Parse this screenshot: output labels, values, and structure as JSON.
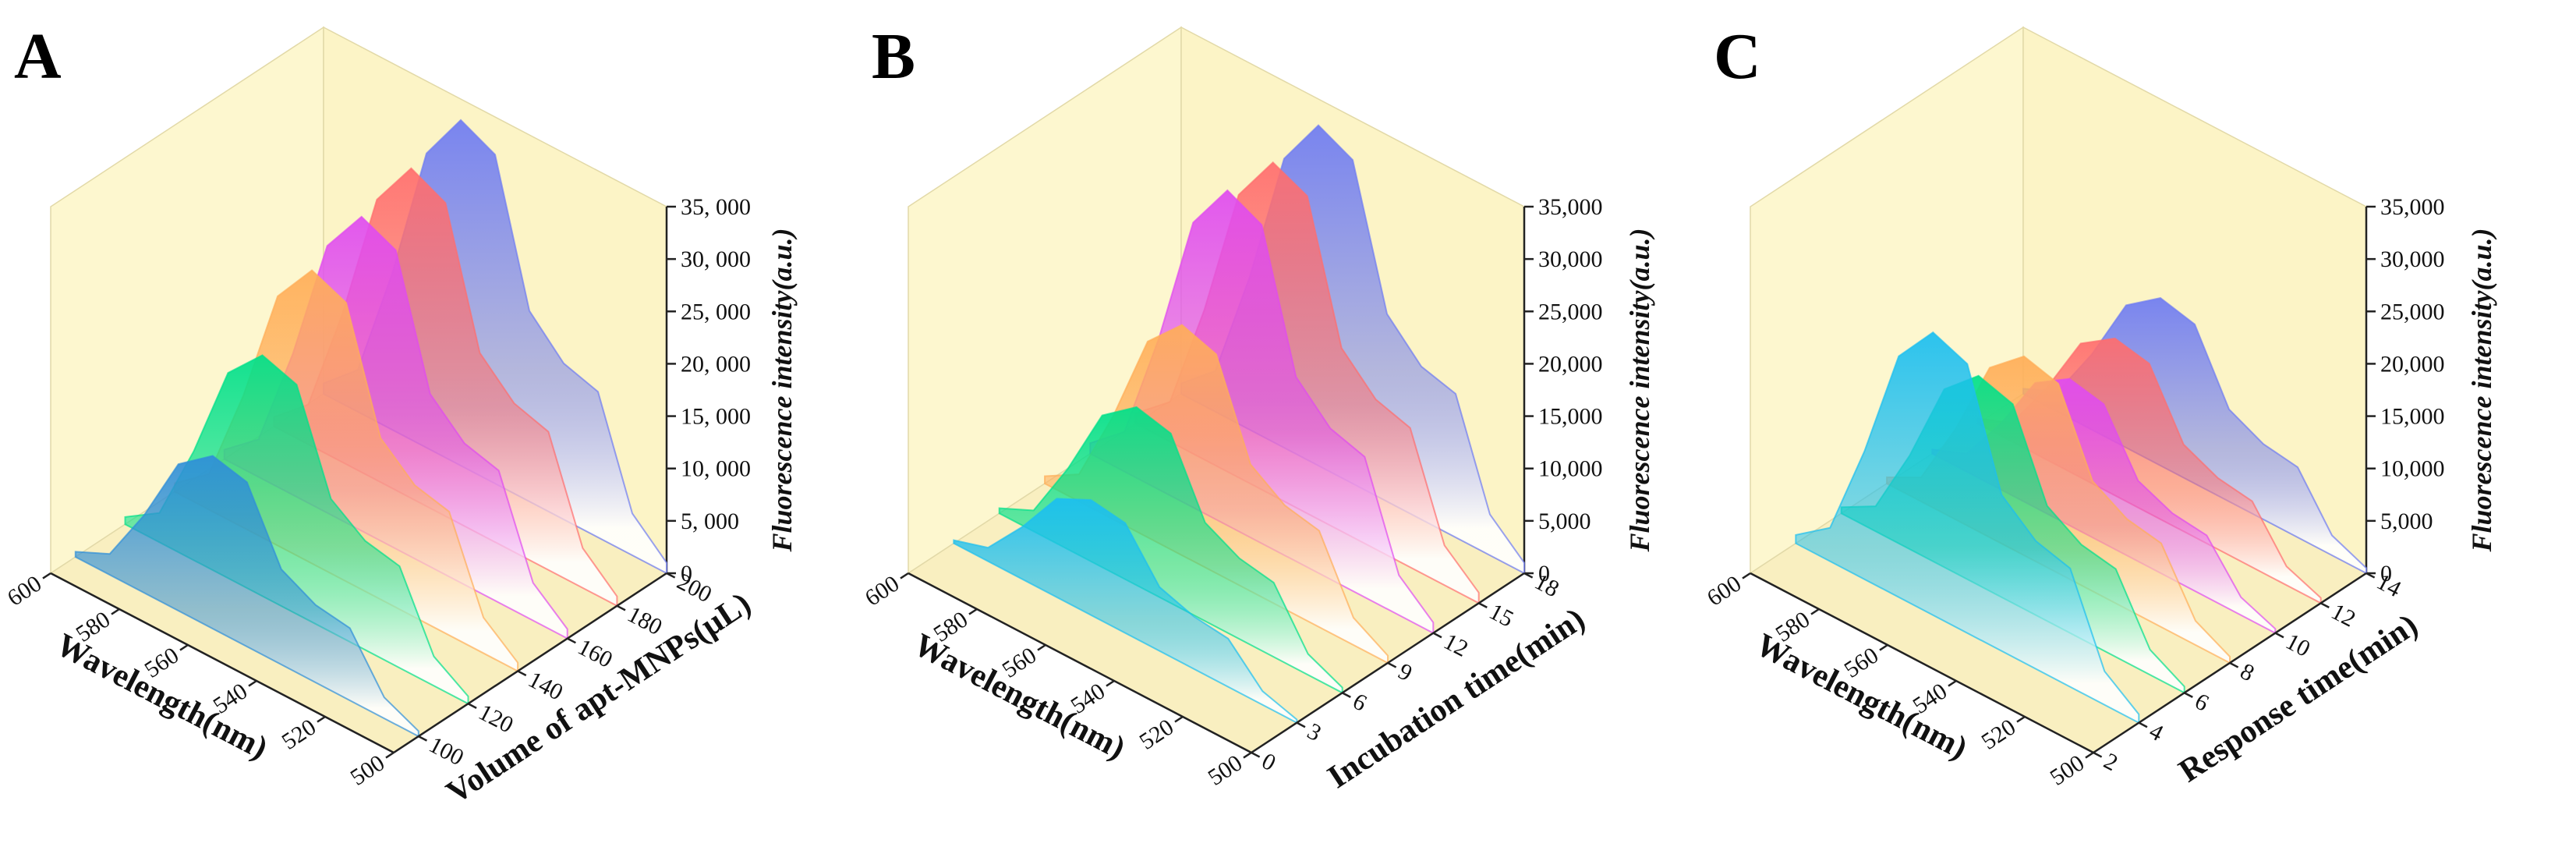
{
  "chart_data": [
    {
      "type": "waterfall3d",
      "panel": "A",
      "xlabel": "Wavelength(nm)",
      "depthlabel": "Volume of apt-MNPs(μL)",
      "zlabel": "Fluorescence intensity(a.u.)",
      "x": [
        500,
        510,
        520,
        530,
        540,
        550,
        560,
        570,
        580,
        590,
        600
      ],
      "xlim": [
        500,
        600
      ],
      "xticks": [
        500,
        520,
        540,
        560,
        580,
        600
      ],
      "depthlim": [
        90,
        200
      ],
      "depthticks": [
        100,
        120,
        140,
        160,
        180,
        200
      ],
      "zlim": [
        0,
        35000
      ],
      "zticks": [
        0,
        {
          "value": 5000,
          "label": "5, 000"
        },
        {
          "value": 10000,
          "label": "10, 000"
        },
        {
          "value": 15000,
          "label": "15, 000"
        },
        {
          "value": 20000,
          "label": "20, 000"
        },
        {
          "value": 25000,
          "label": "25, 000"
        },
        {
          "value": 30000,
          "label": "30, 000"
        },
        {
          "value": 35000,
          "label": "35, 000"
        }
      ],
      "series": [
        {
          "depth": 100,
          "color": "#2f8fd8",
          "values": [
            500,
            2000,
            6900,
            7400,
            9100,
            15700,
            16500,
            14000,
            7400,
            2000,
            500
          ]
        },
        {
          "depth": 120,
          "color": "#00e08a",
          "values": [
            700,
            2800,
            9700,
            10400,
            12700,
            21900,
            23000,
            19600,
            10400,
            2800,
            700
          ]
        },
        {
          "depth": 140,
          "color": "#ffae58",
          "values": [
            800,
            3400,
            11800,
            12600,
            15400,
            26600,
            28000,
            23800,
            12600,
            3400,
            800
          ]
        },
        {
          "depth": 160,
          "color": "#e04cf0",
          "values": [
            900,
            3600,
            12600,
            13500,
            16500,
            28500,
            30000,
            25500,
            13500,
            3600,
            900
          ]
        },
        {
          "depth": 180,
          "color": "#ff6e6e",
          "values": [
            900,
            3800,
            13200,
            14200,
            17300,
            29900,
            31500,
            26800,
            14200,
            3800,
            900
          ]
        },
        {
          "depth": 200,
          "color": "#6f7cf2",
          "values": [
            1000,
            4000,
            13900,
            14900,
            18200,
            31400,
            33000,
            28100,
            14900,
            4000,
            1000
          ]
        }
      ]
    },
    {
      "type": "waterfall3d",
      "panel": "B",
      "xlabel": "Wavelength(nm)",
      "depthlabel": "Incubation time(min)",
      "zlabel": "Fluorescence intensity(a.u.)",
      "x": [
        500,
        510,
        520,
        530,
        540,
        550,
        560,
        570,
        580,
        590,
        600
      ],
      "xlim": [
        500,
        600
      ],
      "xticks": [
        500,
        520,
        540,
        560,
        580,
        600
      ],
      "depthlim": [
        0,
        18
      ],
      "depthticks": [
        0,
        3,
        6,
        9,
        12,
        15,
        18
      ],
      "zlim": [
        0,
        35000
      ],
      "zticks": [
        0,
        {
          "value": 5000,
          "label": "5,000"
        },
        {
          "value": 10000,
          "label": "10,000"
        },
        {
          "value": 15000,
          "label": "15,000"
        },
        {
          "value": 20000,
          "label": "20,000"
        },
        {
          "value": 25000,
          "label": "25,000"
        },
        {
          "value": 30000,
          "label": "30,000"
        },
        {
          "value": 35000,
          "label": "35,000"
        }
      ],
      "series": [
        {
          "depth": 3,
          "color": "#1cbff0",
          "values": [
            300,
            1300,
            4600,
            5000,
            6100,
            10500,
            11000,
            9400,
            5000,
            1300,
            300
          ]
        },
        {
          "depth": 6,
          "color": "#00e08a",
          "values": [
            500,
            2000,
            7100,
            7700,
            9400,
            16200,
            17000,
            14500,
            7700,
            2000,
            500
          ]
        },
        {
          "depth": 9,
          "color": "#ffae58",
          "values": [
            700,
            2600,
            9200,
            9900,
            12100,
            20900,
            22000,
            18700,
            9900,
            2600,
            700
          ]
        },
        {
          "depth": 12,
          "color": "#e04cf0",
          "values": [
            1000,
            3800,
            13400,
            14400,
            17600,
            30400,
            32000,
            27200,
            14400,
            3800,
            1000
          ]
        },
        {
          "depth": 15,
          "color": "#ff6e6e",
          "values": [
            1000,
            3800,
            13300,
            14300,
            17500,
            30300,
            31800,
            27000,
            14300,
            3800,
            1000
          ]
        },
        {
          "depth": 18,
          "color": "#6f7cf2",
          "values": [
            1000,
            3900,
            13700,
            14600,
            17900,
            30900,
            32500,
            27600,
            14600,
            3900,
            1000
          ]
        }
      ]
    },
    {
      "type": "waterfall3d",
      "panel": "C",
      "xlabel": "Wavelength(nm)",
      "depthlabel": "Response time(min)",
      "zlabel": "Fluorescence intensity(a.u.)",
      "x": [
        500,
        510,
        520,
        530,
        540,
        550,
        560,
        570,
        580,
        590,
        600
      ],
      "xlim": [
        500,
        600
      ],
      "xticks": [
        500,
        520,
        540,
        560,
        580,
        600
      ],
      "depthlim": [
        2,
        14
      ],
      "depthticks": [
        2,
        4,
        6,
        8,
        10,
        12,
        14
      ],
      "zlim": [
        0,
        35000
      ],
      "zticks": [
        0,
        {
          "value": 5000,
          "label": "5,000"
        },
        {
          "value": 10000,
          "label": "10,000"
        },
        {
          "value": 15000,
          "label": "15,000"
        },
        {
          "value": 20000,
          "label": "20,000"
        },
        {
          "value": 25000,
          "label": "25,000"
        },
        {
          "value": 30000,
          "label": "30,000"
        },
        {
          "value": 35000,
          "label": "35,000"
        }
      ],
      "series": [
        {
          "depth": 4,
          "color": "#1cbff0",
          "values": [
            800,
            3200,
            11300,
            12200,
            14900,
            25700,
            27000,
            23000,
            12200,
            3200,
            800
          ]
        },
        {
          "depth": 6,
          "color": "#00e08a",
          "values": [
            600,
            2400,
            8400,
            9000,
            11000,
            19000,
            20000,
            17000,
            9000,
            2400,
            600
          ]
        },
        {
          "depth": 8,
          "color": "#ffae58",
          "values": [
            600,
            2300,
            8000,
            8600,
            10500,
            18100,
            19000,
            16200,
            8600,
            2300,
            600
          ]
        },
        {
          "depth": 10,
          "color": "#e04cf0",
          "values": [
            400,
            1700,
            5900,
            6300,
            7700,
            13300,
            14000,
            11900,
            6300,
            1700,
            400
          ]
        },
        {
          "depth": 12,
          "color": "#ff6e6e",
          "values": [
            500,
            1800,
            6300,
            6800,
            8300,
            14300,
            15000,
            12800,
            6800,
            1800,
            500
          ]
        },
        {
          "depth": 14,
          "color": "#6f7cf2",
          "values": [
            500,
            1900,
            6700,
            7200,
            8800,
            15200,
            16000,
            13600,
            7200,
            1900,
            500
          ]
        }
      ]
    }
  ]
}
